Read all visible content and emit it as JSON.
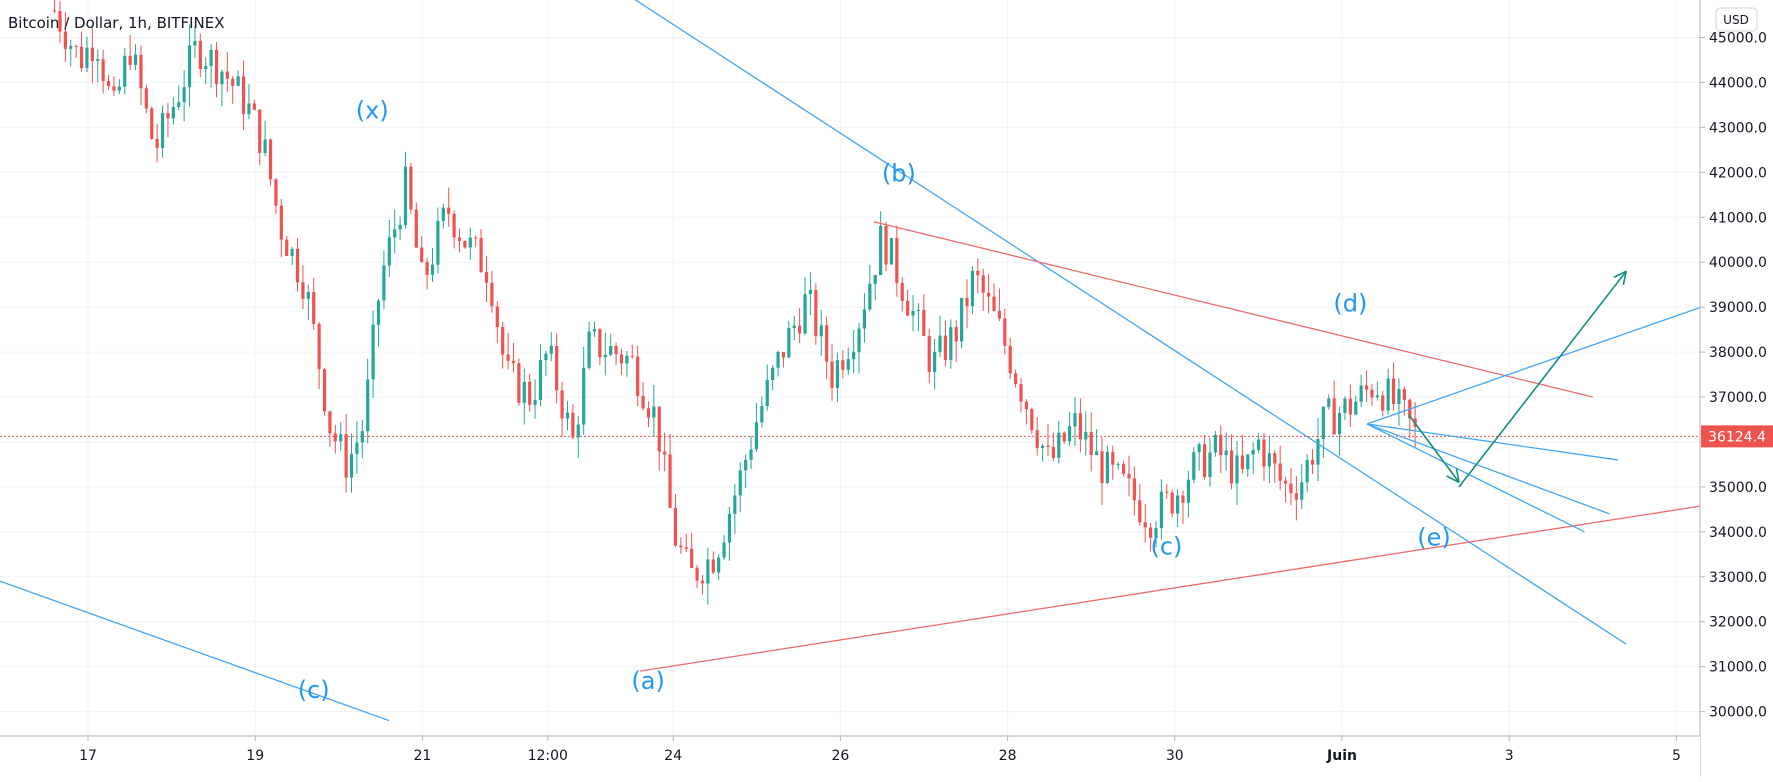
{
  "header": {
    "title": "Bitcoin / Dollar, 1h, BITFINEX"
  },
  "chart_data": {
    "type": "candlestick",
    "title": "Bitcoin / Dollar, 1h, BITFINEX",
    "currency_label": "USD",
    "last_price": "36124.4",
    "ylim": [
      29500,
      46000
    ],
    "y_ticks": [
      "30000.0",
      "31000.0",
      "32000.0",
      "33000.0",
      "34000.0",
      "35000.0",
      "36000.0",
      "37000.0",
      "38000.0",
      "39000.0",
      "40000.0",
      "41000.0",
      "42000.0",
      "43000.0",
      "44000.0",
      "45000.0"
    ],
    "x_ticks": [
      "17",
      "19",
      "21",
      "12:00",
      "24",
      "26",
      "28",
      "30",
      "Juin",
      "3",
      "5"
    ],
    "colors": {
      "up": "#26a69a",
      "down": "#ef5350",
      "blue_line": "#42a5f5",
      "red_line": "#ef6c6c",
      "arrow": "#138f7d",
      "label": "#2196f3"
    },
    "wave_labels": [
      "(x)",
      "(c)",
      "(a)",
      "(b)",
      "(c)",
      "(d)",
      "(e)"
    ],
    "price_path": [
      [
        16.6,
        45600
      ],
      [
        16.9,
        44500
      ],
      [
        17.1,
        45000
      ],
      [
        17.3,
        43300
      ],
      [
        17.5,
        44800
      ],
      [
        17.8,
        42500
      ],
      [
        18.0,
        43400
      ],
      [
        18.3,
        44800
      ],
      [
        18.6,
        44300
      ],
      [
        18.9,
        43500
      ],
      [
        19.1,
        42600
      ],
      [
        19.3,
        40800
      ],
      [
        19.6,
        39500
      ],
      [
        19.9,
        36300
      ],
      [
        20.1,
        35500
      ],
      [
        20.3,
        36400
      ],
      [
        20.5,
        39600
      ],
      [
        20.8,
        41700
      ],
      [
        21.0,
        39500
      ],
      [
        21.3,
        41200
      ],
      [
        21.5,
        40500
      ],
      [
        21.8,
        39800
      ],
      [
        22.0,
        37500
      ],
      [
        22.3,
        37000
      ],
      [
        22.5,
        38000
      ],
      [
        22.8,
        36000
      ],
      [
        23.0,
        38200
      ],
      [
        23.3,
        38000
      ],
      [
        23.5,
        37800
      ],
      [
        23.8,
        36500
      ],
      [
        24.0,
        34000
      ],
      [
        24.2,
        33000
      ],
      [
        24.5,
        33500
      ],
      [
        24.8,
        35200
      ],
      [
        25.0,
        36500
      ],
      [
        25.3,
        38000
      ],
      [
        25.6,
        39200
      ],
      [
        25.9,
        37500
      ],
      [
        26.2,
        38600
      ],
      [
        26.5,
        40600
      ],
      [
        26.8,
        39200
      ],
      [
        27.1,
        37700
      ],
      [
        27.4,
        38500
      ],
      [
        27.6,
        39700
      ],
      [
        27.9,
        38500
      ],
      [
        28.2,
        37000
      ],
      [
        28.5,
        35500
      ],
      [
        28.8,
        36400
      ],
      [
        29.1,
        35500
      ],
      [
        29.4,
        35000
      ],
      [
        29.7,
        34300
      ],
      [
        30.0,
        34800
      ],
      [
        30.2,
        35400
      ],
      [
        30.5,
        35800
      ],
      [
        30.8,
        35200
      ],
      [
        31.0,
        36000
      ],
      [
        31.3,
        35000
      ],
      [
        31.5,
        35100
      ],
      [
        31.8,
        36500
      ],
      [
        32.1,
        36800
      ],
      [
        32.4,
        37300
      ],
      [
        32.7,
        36700
      ],
      [
        32.9,
        36100
      ]
    ]
  }
}
